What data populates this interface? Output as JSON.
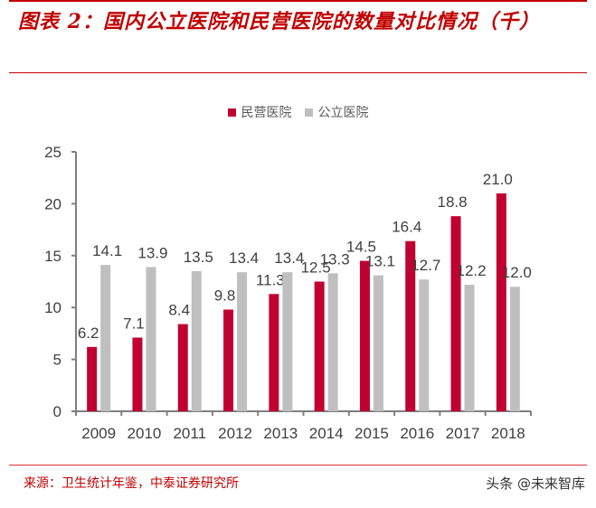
{
  "header": {
    "title": "图表 2：国内公立医院和民营医院的数量对比情况（千）"
  },
  "legend": [
    {
      "label": "民营医院",
      "color": "#c00031"
    },
    {
      "label": "公立医院",
      "color": "#bfbfbf"
    }
  ],
  "footer": {
    "source": "来源：卫生统计年鉴，中泰证券研究所",
    "watermark": "头条 @未来智库"
  },
  "chart_data": {
    "type": "bar",
    "title": "国内公立医院和民营医院的数量对比情况（千）",
    "xlabel": "",
    "ylabel": "",
    "categories": [
      "2009",
      "2010",
      "2011",
      "2012",
      "2013",
      "2014",
      "2015",
      "2016",
      "2017",
      "2018"
    ],
    "series": [
      {
        "name": "民营医院",
        "color": "#c00031",
        "values": [
          6.2,
          7.1,
          8.4,
          9.8,
          11.3,
          12.5,
          14.5,
          16.4,
          18.8,
          21.0
        ]
      },
      {
        "name": "公立医院",
        "color": "#bfbfbf",
        "values": [
          14.1,
          13.9,
          13.5,
          13.4,
          13.4,
          13.3,
          13.1,
          12.7,
          12.2,
          12.0
        ]
      }
    ],
    "ylim": [
      0,
      25
    ],
    "yticks": [
      0,
      5,
      10,
      15,
      20,
      25
    ],
    "grid": false,
    "legend_position": "top",
    "data_labels": true
  }
}
